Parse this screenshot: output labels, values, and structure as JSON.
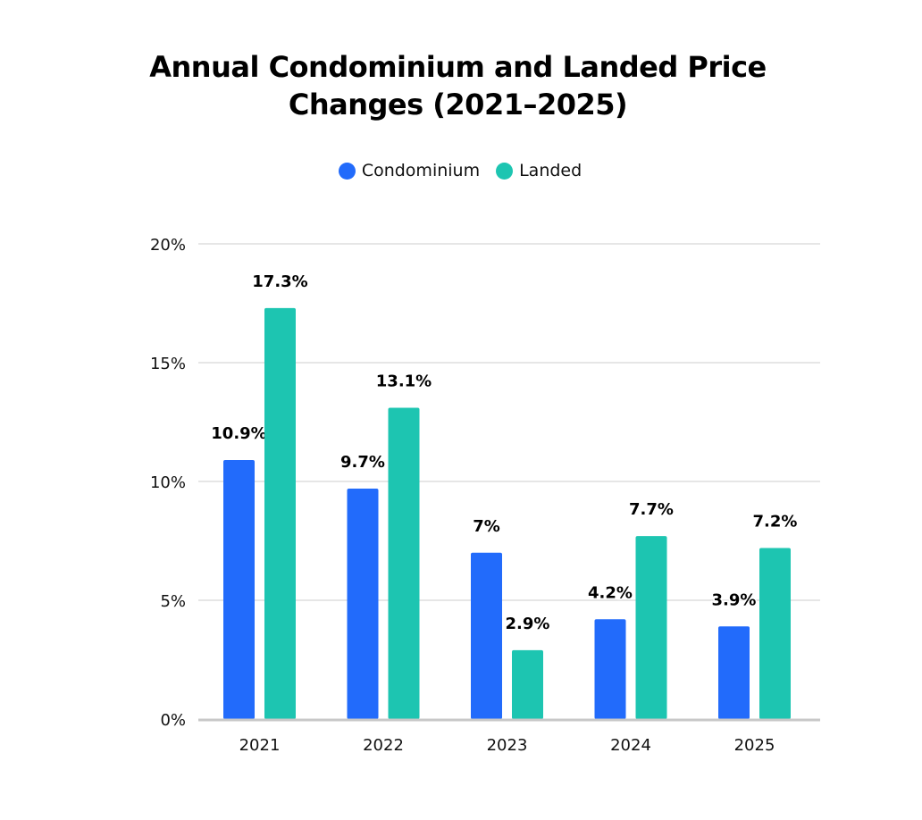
{
  "chart_data": {
    "type": "bar",
    "title_lines": [
      "Annual Condominium and Landed Price",
      "Changes (2021–2025)"
    ],
    "title": "Annual Condominium and Landed Price Changes (2021–2025)",
    "xlabel": "",
    "ylabel": "",
    "categories": [
      "2021",
      "2022",
      "2023",
      "2024",
      "2025"
    ],
    "series": [
      {
        "name": "Condominium",
        "color": "#226BFB",
        "values": [
          10.9,
          9.7,
          7,
          4.2,
          3.9
        ],
        "labels": [
          "10.9%",
          "9.7%",
          "7%",
          "4.2%",
          "3.9%"
        ]
      },
      {
        "name": "Landed",
        "color": "#1DC5B1",
        "values": [
          17.3,
          13.1,
          2.9,
          7.7,
          7.2
        ],
        "labels": [
          "17.3%",
          "13.1%",
          "2.9%",
          "7.7%",
          "7.2%"
        ]
      }
    ],
    "ylim": [
      0,
      20
    ],
    "yticks": [
      0,
      5,
      10,
      15,
      20
    ],
    "ytick_labels": [
      "0%",
      "5%",
      "10%",
      "15%",
      "20%"
    ],
    "grid": true,
    "legend_position": "top-center",
    "gridline_color": "#E6E6E6",
    "axis_color": "#C8C8C8"
  }
}
